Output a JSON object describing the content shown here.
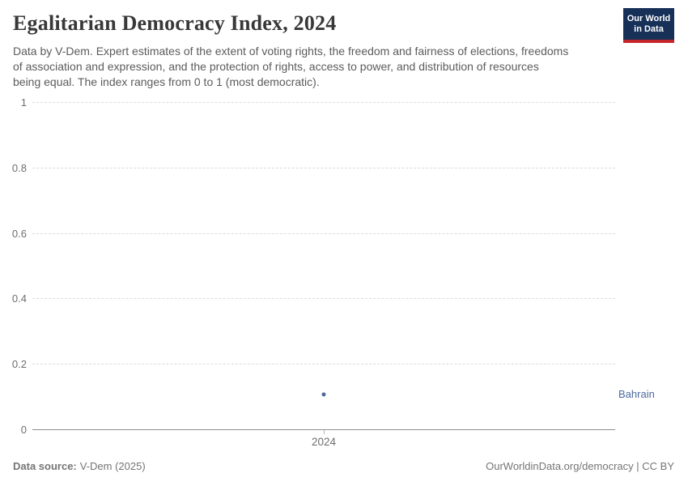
{
  "header": {
    "title": "Egalitarian Democracy Index, 2024",
    "subtitle_lines": [
      "Data by V-Dem. Expert estimates of the extent of voting rights, the freedom and fairness of elections, freedoms",
      "of association and expression, and the protection of rights, access to power, and distribution of resources",
      "being equal. The index ranges from 0 to 1 (most democratic)."
    ],
    "logo": {
      "line1": "Our World",
      "line2": "in Data",
      "bg_color": "#163058",
      "stripe_color": "#c5262c"
    }
  },
  "chart_data": {
    "type": "scatter",
    "title": "Egalitarian Democracy Index, 2024",
    "x_categories": [
      "2024"
    ],
    "series": [
      {
        "name": "Bahrain",
        "color": "#4c6a9c",
        "points": [
          {
            "x": "2024",
            "y": 0.11
          }
        ]
      }
    ],
    "ylim": [
      0,
      1
    ],
    "yticks": [
      0,
      0.2,
      0.4,
      0.6,
      0.8,
      1
    ],
    "xlabel": "",
    "ylabel": "",
    "grid": "horizontal-dashed",
    "legend_position": "right-of-point"
  },
  "footer": {
    "data_source_label": "Data source:",
    "data_source_value": "V-Dem (2025)",
    "attribution": "OurWorldinData.org/democracy | CC BY"
  }
}
